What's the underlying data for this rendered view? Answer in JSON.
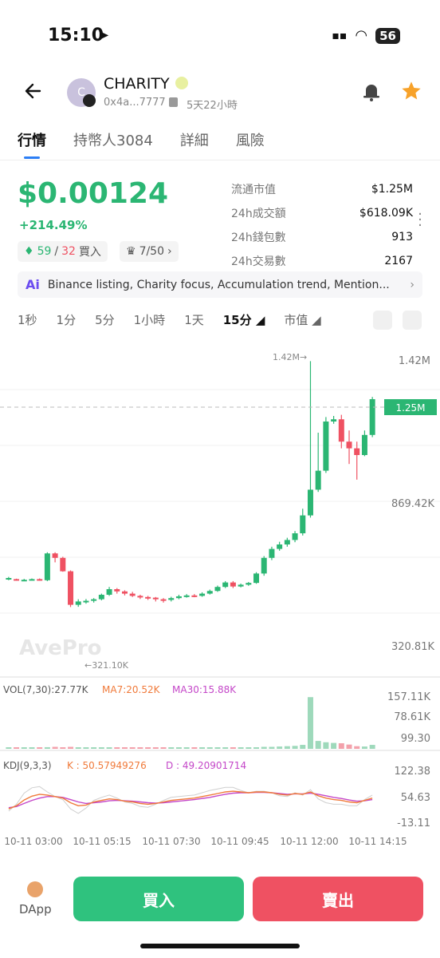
{
  "status": {
    "time": "15:10",
    "battery": "56"
  },
  "token": {
    "name": "CHARITY",
    "avatar_letter": "C",
    "address": "0x4a...7777",
    "age": "5天22小時"
  },
  "tabs": [
    {
      "label": "行情",
      "active": true
    },
    {
      "label": "持幣人3084"
    },
    {
      "label": "詳細"
    },
    {
      "label": "風險"
    }
  ],
  "price": {
    "value": "$0.00124",
    "change": "+214.49%",
    "buyers_green": "59",
    "buyers_sep": "/",
    "buyers_red": "32",
    "buyers_label": "買入",
    "crown": "7/50"
  },
  "stats": [
    {
      "label": "流通市值",
      "value": "$1.25M"
    },
    {
      "label": "24h成交額",
      "value": "$618.09K"
    },
    {
      "label": "24h錢包數",
      "value": "913"
    },
    {
      "label": "24h交易數",
      "value": "2167"
    }
  ],
  "ai_summary": {
    "icon": "Ai",
    "text": "Binance listing, Charity focus, Accumulation trend, Mention..."
  },
  "intervals": [
    "1秒",
    "1分",
    "5分",
    "1小時",
    "1天",
    "15分",
    "市值"
  ],
  "chart_data": {
    "type": "candlestick",
    "main": {
      "y_ticks": [
        "1.42M",
        "869.42K",
        "320.81K"
      ],
      "current_label": "1.25M",
      "high_annotation": "1.42M→",
      "low_annotation": "←321.10K",
      "watermark": "AvePro"
    },
    "volume": {
      "label": "VOL(7,30):27.77K",
      "ma7": "MA7:20.52K",
      "ma30": "MA30:15.88K",
      "y_ticks": [
        "157.11K",
        "78.61K",
        "99.30"
      ]
    },
    "kdj": {
      "label": "KDJ(9,3,3)",
      "k": "K : 50.57949276",
      "d": "D : 49.20901714",
      "y_ticks": [
        "122.38",
        "54.63",
        "-13.11"
      ]
    },
    "x_labels": [
      "10-11 03:00",
      "10-11 05:15",
      "10-11 07:30",
      "10-11 09:45",
      "10-11 12:00",
      "10-11 14:15"
    ],
    "candles": [
      [
        450,
        450,
        440,
        455
      ],
      [
        445,
        440,
        438,
        447
      ],
      [
        440,
        442,
        436,
        446
      ],
      [
        442,
        445,
        440,
        448
      ],
      [
        445,
        440,
        438,
        448
      ],
      [
        440,
        560,
        436,
        565
      ],
      [
        560,
        540,
        520,
        565
      ],
      [
        540,
        480,
        478,
        545
      ],
      [
        480,
        330,
        320,
        484
      ],
      [
        330,
        345,
        321,
        355
      ],
      [
        345,
        348,
        335,
        356
      ],
      [
        348,
        355,
        340,
        360
      ],
      [
        355,
        375,
        350,
        380
      ],
      [
        375,
        400,
        370,
        410
      ],
      [
        400,
        390,
        380,
        405
      ],
      [
        390,
        380,
        372,
        395
      ],
      [
        380,
        370,
        365,
        388
      ],
      [
        370,
        365,
        356,
        375
      ],
      [
        365,
        362,
        352,
        370
      ],
      [
        362,
        355,
        345,
        365
      ],
      [
        355,
        352,
        340,
        360
      ],
      [
        352,
        360,
        345,
        366
      ],
      [
        360,
        368,
        355,
        375
      ],
      [
        368,
        372,
        362,
        378
      ],
      [
        372,
        370,
        364,
        378
      ],
      [
        370,
        380,
        366,
        386
      ],
      [
        380,
        392,
        376,
        398
      ],
      [
        392,
        410,
        388,
        416
      ],
      [
        410,
        430,
        405,
        436
      ],
      [
        430,
        412,
        405,
        436
      ],
      [
        412,
        420,
        408,
        425
      ],
      [
        420,
        428,
        415,
        432
      ],
      [
        428,
        470,
        424,
        476
      ],
      [
        470,
        540,
        460,
        548
      ],
      [
        540,
        580,
        530,
        590
      ],
      [
        580,
        600,
        572,
        612
      ],
      [
        600,
        620,
        590,
        630
      ],
      [
        620,
        650,
        610,
        660
      ],
      [
        650,
        730,
        640,
        760
      ],
      [
        730,
        845,
        720,
        1420
      ],
      [
        845,
        930,
        835,
        1100
      ],
      [
        930,
        1150,
        920,
        1170
      ],
      [
        1150,
        1160,
        1140,
        1175
      ],
      [
        1160,
        1060,
        1030,
        1180
      ],
      [
        1060,
        1030,
        960,
        1110
      ],
      [
        1030,
        1000,
        890,
        1060
      ],
      [
        1000,
        1090,
        995,
        1110
      ],
      [
        1090,
        1250,
        1080,
        1260
      ]
    ],
    "volumes": [
      3,
      2,
      2,
      2,
      3,
      5,
      6,
      4,
      6,
      4,
      3,
      3,
      4,
      3,
      3,
      3,
      2,
      3,
      2,
      2,
      3,
      2,
      3,
      3,
      2,
      3,
      3,
      3,
      4,
      4,
      3,
      4,
      4,
      6,
      6,
      7,
      8,
      9,
      12,
      157,
      24,
      20,
      18,
      17,
      13,
      8,
      7,
      12
    ],
    "k_line": [
      22,
      30,
      45,
      55,
      60,
      58,
      54,
      50,
      38,
      30,
      32,
      40,
      44,
      48,
      46,
      42,
      40,
      36,
      34,
      36,
      40,
      44,
      46,
      48,
      50,
      54,
      58,
      62,
      66,
      68,
      66,
      64,
      66,
      66,
      64,
      60,
      58,
      62,
      60,
      66,
      56,
      50,
      46,
      44,
      40,
      38,
      44,
      50
    ],
    "d_line": [
      25,
      28,
      36,
      44,
      50,
      54,
      54,
      52,
      46,
      40,
      36,
      38,
      40,
      43,
      44,
      43,
      42,
      40,
      38,
      37,
      38,
      40,
      42,
      44,
      46,
      49,
      52,
      56,
      60,
      63,
      64,
      64,
      65,
      65,
      64,
      62,
      60,
      61,
      61,
      63,
      60,
      56,
      52,
      49,
      45,
      42,
      43,
      46
    ],
    "j_line": [
      16,
      34,
      63,
      77,
      80,
      66,
      54,
      46,
      22,
      10,
      24,
      44,
      52,
      58,
      50,
      40,
      36,
      28,
      26,
      34,
      44,
      52,
      54,
      56,
      58,
      64,
      70,
      74,
      78,
      78,
      70,
      64,
      68,
      68,
      64,
      56,
      54,
      64,
      58,
      72,
      48,
      38,
      34,
      34,
      30,
      30,
      46,
      58
    ]
  },
  "colors": {
    "up": "#2bb673",
    "down": "#ef5162",
    "accent": "#2c7ef5",
    "star": "#f7a22a"
  },
  "bottom": {
    "dapp": "DApp",
    "buy": "買入",
    "sell": "賣出"
  }
}
